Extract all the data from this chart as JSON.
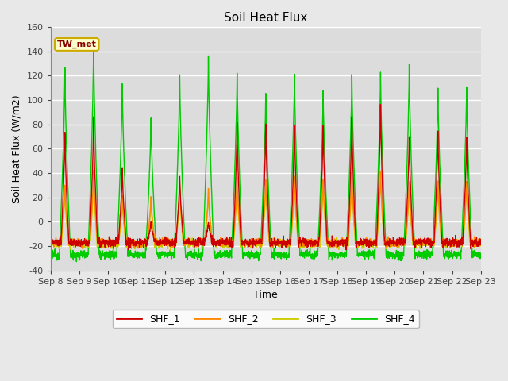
{
  "title": "Soil Heat Flux",
  "ylabel": "Soil Heat Flux (W/m2)",
  "xlabel": "Time",
  "ylim": [
    -40,
    160
  ],
  "yticks": [
    -40,
    -20,
    0,
    20,
    40,
    60,
    80,
    100,
    120,
    140,
    160
  ],
  "n_days": 15,
  "xtick_labels": [
    "Sep 8",
    "Sep 9",
    "Sep 10",
    "Sep 11",
    "Sep 12",
    "Sep 13",
    "Sep 14",
    "Sep 15",
    "Sep 16",
    "Sep 17",
    "Sep 18",
    "Sep 19",
    "Sep 20",
    "Sep 21",
    "Sep 22",
    "Sep 23"
  ],
  "colors": {
    "SHF_1": "#cc0000",
    "SHF_2": "#ff8800",
    "SHF_3": "#cccc00",
    "SHF_4": "#00cc00"
  },
  "legend_label": "TW_met",
  "legend_box_facecolor": "#ffffcc",
  "legend_box_edgecolor": "#ccaa00",
  "plot_bg_color": "#dcdcdc",
  "fig_bg_color": "#e8e8e8",
  "grid_color": "#ffffff",
  "title_fontsize": 11,
  "label_fontsize": 9,
  "tick_fontsize": 8,
  "line_width": 1.0,
  "peaks_SHF_4": [
    126,
    145,
    113,
    85,
    122,
    136,
    123,
    106,
    122,
    107,
    122,
    123,
    128,
    110,
    110
  ],
  "peaks_SHF_1": [
    73,
    85,
    43,
    0,
    38,
    0,
    81,
    80,
    80,
    80,
    87,
    98,
    70,
    75,
    70
  ],
  "peaks_SHF_2": [
    30,
    42,
    22,
    20,
    30,
    27,
    36,
    35,
    38,
    35,
    40,
    42,
    33,
    33,
    33
  ],
  "peaks_SHF_3": [
    25,
    38,
    18,
    18,
    27,
    25,
    33,
    32,
    35,
    33,
    38,
    40,
    30,
    30,
    30
  ],
  "night_base_SHF_1": -17,
  "night_base_SHF_2": -17,
  "night_base_SHF_3": -18,
  "night_base_SHF_4": -27,
  "pts_per_day": 144
}
